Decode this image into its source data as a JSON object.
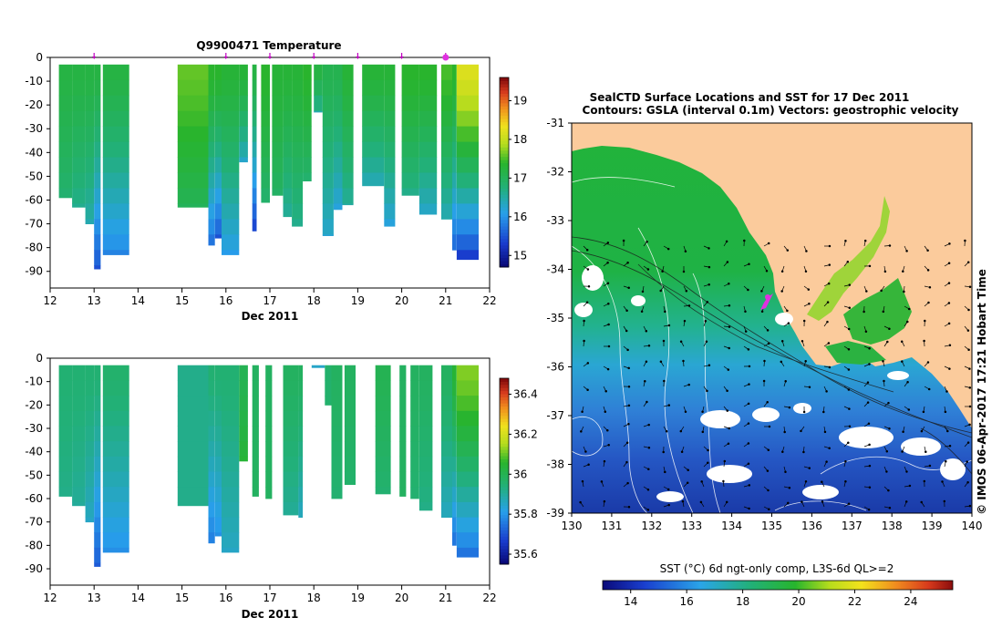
{
  "chart_data": [
    {
      "type": "heatmap",
      "title": "Q9900471  Temperature",
      "xlabel": "Dec 2011",
      "ylabel": "",
      "xlim": [
        12,
        22
      ],
      "ylim": [
        -97,
        0
      ],
      "xticks": [
        "12",
        "13",
        "14",
        "15",
        "16",
        "17",
        "18",
        "19",
        "20",
        "21",
        "22"
      ],
      "yticks": [
        "0",
        "-10",
        "-20",
        "-30",
        "-40",
        "-50",
        "-60",
        "-70",
        "-80",
        "-90"
      ],
      "colorbar": {
        "min": 14.7,
        "max": 19.6,
        "ticks": [
          "15",
          "16",
          "17",
          "18",
          "19"
        ]
      },
      "profile_markers_x": [
        13.0,
        16.0,
        17.0,
        18.0,
        19.0,
        20.0,
        21.0
      ],
      "highlight_marker_x": 21.0,
      "profiles": [
        {
          "t0": 12.2,
          "t1": 12.5,
          "depth": 59,
          "top": 17.2,
          "bottom": 16.8
        },
        {
          "t0": 12.5,
          "t1": 12.8,
          "depth": 63,
          "top": 17.2,
          "bottom": 16.6
        },
        {
          "t0": 12.8,
          "t1": 13.0,
          "depth": 70,
          "top": 17.2,
          "bottom": 16.4
        },
        {
          "t0": 13.0,
          "t1": 13.15,
          "depth": 89,
          "top": 17.2,
          "bottom": 15.4
        },
        {
          "t0": 13.2,
          "t1": 13.8,
          "depth": 83,
          "top": 17.2,
          "bottom": 15.8
        },
        {
          "t0": 14.9,
          "t1": 15.6,
          "depth": 63,
          "top": 17.6,
          "bottom": 17.0
        },
        {
          "t0": 15.6,
          "t1": 15.75,
          "depth": 79,
          "top": 17.4,
          "bottom": 15.6
        },
        {
          "t0": 15.75,
          "t1": 15.9,
          "depth": 76,
          "top": 17.4,
          "bottom": 15.4
        },
        {
          "t0": 15.9,
          "t1": 16.3,
          "depth": 83,
          "top": 17.3,
          "bottom": 16.0
        },
        {
          "t0": 16.3,
          "t1": 16.5,
          "depth": 44,
          "top": 17.3,
          "bottom": 16.2
        },
        {
          "t0": 16.6,
          "t1": 16.7,
          "depth": 73,
          "top": 17.2,
          "bottom": 15.2
        },
        {
          "t0": 16.8,
          "t1": 17.0,
          "depth": 61,
          "top": 17.4,
          "bottom": 16.8
        },
        {
          "t0": 17.05,
          "t1": 17.3,
          "depth": 58,
          "top": 17.3,
          "bottom": 16.9
        },
        {
          "t0": 17.3,
          "t1": 17.5,
          "depth": 67,
          "top": 17.3,
          "bottom": 16.5
        },
        {
          "t0": 17.5,
          "t1": 17.75,
          "depth": 71,
          "top": 17.3,
          "bottom": 16.6
        },
        {
          "t0": 17.75,
          "t1": 17.95,
          "depth": 52,
          "top": 17.4,
          "bottom": 16.8
        },
        {
          "t0": 18.0,
          "t1": 18.2,
          "depth": 23,
          "top": 17.2,
          "bottom": 16.4
        },
        {
          "t0": 18.2,
          "t1": 18.45,
          "depth": 75,
          "top": 17.1,
          "bottom": 16.2
        },
        {
          "t0": 18.45,
          "t1": 18.65,
          "depth": 64,
          "top": 17.1,
          "bottom": 16.1
        },
        {
          "t0": 18.65,
          "t1": 18.9,
          "depth": 62,
          "top": 17.3,
          "bottom": 16.5
        },
        {
          "t0": 19.1,
          "t1": 19.6,
          "depth": 54,
          "top": 17.3,
          "bottom": 16.3
        },
        {
          "t0": 19.6,
          "t1": 19.85,
          "depth": 71,
          "top": 17.3,
          "bottom": 16.1
        },
        {
          "t0": 20.0,
          "t1": 20.4,
          "depth": 58,
          "top": 17.4,
          "bottom": 16.6
        },
        {
          "t0": 20.4,
          "t1": 20.8,
          "depth": 66,
          "top": 17.4,
          "bottom": 16.2
        },
        {
          "t0": 20.9,
          "t1": 21.15,
          "depth": 68,
          "top": 17.5,
          "bottom": 16.3
        },
        {
          "t0": 21.15,
          "t1": 21.25,
          "depth": 81,
          "top": 17.4,
          "bottom": 15.5
        },
        {
          "t0": 21.25,
          "t1": 21.75,
          "depth": 85,
          "top": 18.2,
          "bottom": 15.1
        }
      ]
    },
    {
      "type": "heatmap",
      "title": "",
      "xlabel": "Dec 2011",
      "ylabel": "",
      "xlim": [
        12,
        22
      ],
      "ylim": [
        -97,
        0
      ],
      "xticks": [
        "12",
        "13",
        "14",
        "15",
        "16",
        "17",
        "18",
        "19",
        "20",
        "21",
        "22"
      ],
      "yticks": [
        "0",
        "-10",
        "-20",
        "-30",
        "-40",
        "-50",
        "-60",
        "-70",
        "-80",
        "-90"
      ],
      "colorbar": {
        "min": 35.55,
        "max": 36.48,
        "ticks": [
          "35.6",
          "35.8",
          "36",
          "36.2",
          "36.4"
        ]
      },
      "profiles": [
        {
          "t0": 12.2,
          "t1": 12.5,
          "depth": 59,
          "top": 35.95,
          "bottom": 35.92
        },
        {
          "t0": 12.5,
          "t1": 12.8,
          "depth": 63,
          "top": 35.95,
          "bottom": 35.9
        },
        {
          "t0": 12.8,
          "t1": 13.0,
          "depth": 70,
          "top": 35.95,
          "bottom": 35.85
        },
        {
          "t0": 13.0,
          "t1": 13.15,
          "depth": 89,
          "top": 35.95,
          "bottom": 35.7
        },
        {
          "t0": 13.2,
          "t1": 13.8,
          "depth": 83,
          "top": 35.96,
          "bottom": 35.78
        },
        {
          "t0": 14.9,
          "t1": 15.6,
          "depth": 63,
          "top": 35.92,
          "bottom": 35.92
        },
        {
          "t0": 15.6,
          "t1": 15.75,
          "depth": 79,
          "top": 35.95,
          "bottom": 35.75
        },
        {
          "t0": 15.75,
          "t1": 15.9,
          "depth": 76,
          "top": 35.95,
          "bottom": 35.78
        },
        {
          "t0": 15.9,
          "t1": 16.3,
          "depth": 83,
          "top": 35.95,
          "bottom": 35.85
        },
        {
          "t0": 16.3,
          "t1": 16.5,
          "depth": 44,
          "top": 36.0,
          "bottom": 36.05
        },
        {
          "t0": 16.6,
          "t1": 16.75,
          "depth": 59,
          "top": 35.98,
          "bottom": 35.98
        },
        {
          "t0": 16.9,
          "t1": 17.05,
          "depth": 60,
          "top": 35.98,
          "bottom": 35.98
        },
        {
          "t0": 17.3,
          "t1": 17.65,
          "depth": 67,
          "top": 35.98,
          "bottom": 35.9
        },
        {
          "t0": 17.65,
          "t1": 17.75,
          "depth": 68,
          "top": 35.98,
          "bottom": 35.85
        },
        {
          "t0": 17.95,
          "t1": 18.25,
          "depth": 4,
          "top": 35.85,
          "bottom": 35.85
        },
        {
          "t0": 18.25,
          "t1": 18.4,
          "depth": 20,
          "top": 35.96,
          "bottom": 35.96
        },
        {
          "t0": 18.4,
          "t1": 18.65,
          "depth": 60,
          "top": 35.98,
          "bottom": 35.95
        },
        {
          "t0": 18.7,
          "t1": 18.95,
          "depth": 54,
          "top": 35.98,
          "bottom": 35.96
        },
        {
          "t0": 19.4,
          "t1": 19.75,
          "depth": 58,
          "top": 36.0,
          "bottom": 35.95
        },
        {
          "t0": 19.95,
          "t1": 20.1,
          "depth": 59,
          "top": 35.98,
          "bottom": 35.98
        },
        {
          "t0": 20.2,
          "t1": 20.4,
          "depth": 60,
          "top": 35.98,
          "bottom": 35.95
        },
        {
          "t0": 20.4,
          "t1": 20.7,
          "depth": 65,
          "top": 35.98,
          "bottom": 35.92
        },
        {
          "t0": 20.9,
          "t1": 21.15,
          "depth": 68,
          "top": 35.98,
          "bottom": 35.85
        },
        {
          "t0": 21.15,
          "t1": 21.25,
          "depth": 80,
          "top": 36.05,
          "bottom": 35.72
        },
        {
          "t0": 21.25,
          "t1": 21.75,
          "depth": 85,
          "top": 36.12,
          "bottom": 35.72
        }
      ]
    },
    {
      "type": "heatmap",
      "title": "SealCTD Surface Locations and SST for 17 Dec 2011",
      "subtitle": "Contours: GSLA (interval 0.1m) Vectors: geostrophic velocity",
      "xlabel": "",
      "ylabel": "",
      "xlim": [
        130,
        140
      ],
      "ylim": [
        -39,
        -31
      ],
      "xticks": [
        "130",
        "131",
        "132",
        "133",
        "134",
        "135",
        "136",
        "137",
        "138",
        "139",
        "140"
      ],
      "yticks": [
        "-31",
        "-32",
        "-33",
        "-34",
        "-35",
        "-36",
        "-37",
        "-38",
        "-39"
      ],
      "side_label": "© IMOS 06-Apr-2017 17:21 Hobart Time",
      "colorbar": {
        "label": "SST (°C) 6d ngt-only comp, L3S-6d QL>=2",
        "min": 13.0,
        "max": 25.5,
        "ticks": [
          "14",
          "16",
          "18",
          "20",
          "22",
          "24"
        ]
      },
      "seal_location": {
        "lon": 134.9,
        "lat": -34.6
      }
    }
  ]
}
